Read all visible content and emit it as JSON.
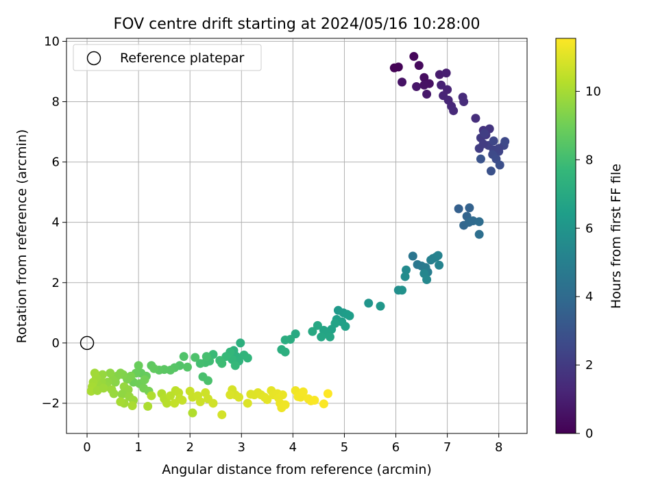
{
  "chart_data": {
    "type": "scatter",
    "title": "FOV centre drift starting at 2024/05/16 10:28:00",
    "xlabel": "Angular distance from reference (arcmin)",
    "ylabel": "Rotation from reference (arcmin)",
    "xlim": [
      -0.4,
      8.55
    ],
    "ylim": [
      -3.0,
      10.1
    ],
    "xticks": [
      0,
      1,
      2,
      3,
      4,
      5,
      6,
      7,
      8
    ],
    "yticks": [
      -2,
      0,
      2,
      4,
      6,
      8,
      10
    ],
    "grid": true,
    "legend": {
      "placement": "top-left",
      "entries": [
        "Reference platepar"
      ]
    },
    "reference_point": {
      "x": 0,
      "y": 0,
      "label": "Reference platepar"
    },
    "colorbar": {
      "label": "Hours from first FF file",
      "colormap": "viridis",
      "range": [
        0,
        11.55
      ],
      "ticks": [
        0,
        2,
        4,
        6,
        8,
        10
      ]
    },
    "series": [
      {
        "points": [
          [
            6.05,
            9.15
          ],
          [
            6.35,
            9.5
          ],
          [
            6.45,
            9.2
          ],
          [
            6.55,
            8.8
          ],
          [
            6.65,
            8.6
          ],
          [
            6.12,
            8.65
          ],
          [
            6.4,
            8.5
          ],
          [
            6.6,
            8.25
          ],
          [
            6.85,
            8.9
          ],
          [
            6.98,
            8.95
          ],
          [
            6.88,
            8.55
          ],
          [
            6.92,
            8.2
          ],
          [
            7.02,
            8.05
          ],
          [
            7.08,
            7.85
          ],
          [
            7.12,
            7.7
          ],
          [
            7.0,
            8.4
          ],
          [
            7.3,
            8.15
          ],
          [
            7.32,
            8.0
          ],
          [
            5.97,
            9.12
          ],
          [
            6.55,
            8.55
          ]
        ],
        "hours": [
          0.1,
          0.2,
          0.3,
          0.4,
          0.5,
          0.6,
          0.7,
          0.8,
          0.9,
          1.0,
          1.1,
          1.2,
          1.25,
          1.3,
          1.35,
          1.15,
          1.4,
          1.45,
          0.05,
          0.55
        ]
      },
      {
        "points": [
          [
            7.55,
            7.45
          ],
          [
            7.7,
            7.05
          ],
          [
            7.82,
            7.1
          ],
          [
            7.75,
            6.9
          ],
          [
            7.65,
            6.8
          ],
          [
            7.62,
            6.45
          ],
          [
            7.8,
            6.55
          ],
          [
            7.9,
            6.4
          ],
          [
            8.0,
            6.35
          ],
          [
            8.1,
            6.55
          ],
          [
            8.12,
            6.68
          ],
          [
            7.88,
            6.25
          ],
          [
            7.95,
            6.1
          ],
          [
            8.02,
            5.9
          ],
          [
            7.85,
            5.7
          ],
          [
            7.65,
            6.1
          ],
          [
            7.9,
            6.7
          ],
          [
            8.0,
            6.45
          ],
          [
            7.72,
            6.95
          ],
          [
            7.7,
            6.6
          ]
        ],
        "hours": [
          1.5,
          1.7,
          1.8,
          1.9,
          2.0,
          2.1,
          2.2,
          2.3,
          2.4,
          2.5,
          2.55,
          2.6,
          2.7,
          2.8,
          2.9,
          3.0,
          2.45,
          2.35,
          2.15,
          2.05
        ]
      },
      {
        "points": [
          [
            7.22,
            4.45
          ],
          [
            7.43,
            4.48
          ],
          [
            7.38,
            4.2
          ],
          [
            7.32,
            3.9
          ],
          [
            7.42,
            4.0
          ],
          [
            7.5,
            4.05
          ],
          [
            7.62,
            4.02
          ],
          [
            7.62,
            3.6
          ]
        ],
        "hours": [
          3.5,
          3.6,
          3.7,
          3.8,
          3.9,
          4.0,
          4.1,
          4.2
        ]
      },
      {
        "points": [
          [
            6.33,
            2.88
          ],
          [
            6.42,
            2.6
          ],
          [
            6.5,
            2.55
          ],
          [
            6.58,
            2.5
          ],
          [
            6.62,
            2.35
          ],
          [
            6.68,
            2.75
          ],
          [
            6.72,
            2.8
          ],
          [
            6.78,
            2.85
          ],
          [
            6.82,
            2.9
          ],
          [
            6.84,
            2.58
          ],
          [
            6.55,
            2.3
          ],
          [
            6.6,
            2.1
          ],
          [
            6.2,
            2.42
          ],
          [
            6.18,
            2.2
          ],
          [
            6.05,
            1.75
          ],
          [
            6.12,
            1.75
          ]
        ],
        "hours": [
          4.5,
          4.6,
          4.7,
          4.8,
          4.9,
          5.0,
          5.05,
          5.1,
          5.15,
          5.2,
          5.3,
          5.4,
          5.5,
          5.6,
          5.7,
          5.8
        ]
      },
      {
        "points": [
          [
            5.47,
            1.32
          ],
          [
            5.7,
            1.22
          ],
          [
            4.88,
            1.08
          ],
          [
            4.98,
            1.0
          ],
          [
            5.05,
            0.95
          ],
          [
            5.1,
            0.9
          ],
          [
            4.85,
            0.78
          ],
          [
            4.95,
            0.7
          ],
          [
            5.02,
            0.55
          ],
          [
            4.75,
            0.45
          ],
          [
            4.82,
            0.65
          ],
          [
            4.6,
            0.42
          ],
          [
            4.65,
            0.35
          ],
          [
            4.72,
            0.2
          ],
          [
            4.55,
            0.2
          ],
          [
            4.48,
            0.58
          ],
          [
            4.38,
            0.38
          ],
          [
            4.05,
            0.3
          ],
          [
            3.95,
            0.12
          ],
          [
            3.85,
            0.1
          ],
          [
            3.78,
            -0.22
          ],
          [
            3.85,
            -0.3
          ],
          [
            2.98,
            0.0
          ],
          [
            2.85,
            -0.25
          ],
          [
            2.9,
            -0.45
          ],
          [
            2.95,
            -0.6
          ],
          [
            3.05,
            -0.4
          ],
          [
            3.12,
            -0.5
          ],
          [
            2.82,
            -0.55
          ],
          [
            2.78,
            -0.3
          ],
          [
            2.88,
            -0.75
          ],
          [
            2.7,
            -0.45
          ]
        ],
        "hours": [
          6.0,
          6.1,
          6.2,
          6.3,
          6.35,
          6.4,
          6.45,
          6.5,
          6.55,
          6.6,
          6.65,
          6.7,
          6.75,
          6.8,
          6.85,
          6.9,
          6.95,
          7.0,
          7.1,
          7.15,
          7.2,
          7.25,
          7.3,
          7.35,
          7.4,
          7.45,
          7.5,
          7.55,
          7.6,
          7.65,
          7.7,
          7.75
        ]
      },
      {
        "points": [
          [
            2.45,
            -0.38
          ],
          [
            2.58,
            -0.58
          ],
          [
            2.62,
            -0.68
          ],
          [
            2.38,
            -0.6
          ],
          [
            2.3,
            -0.65
          ],
          [
            2.2,
            -0.68
          ],
          [
            2.32,
            -0.45
          ],
          [
            2.25,
            -1.12
          ],
          [
            2.35,
            -1.25
          ],
          [
            2.1,
            -0.48
          ],
          [
            1.88,
            -0.45
          ],
          [
            1.8,
            -0.75
          ],
          [
            1.95,
            -0.8
          ],
          [
            1.7,
            -0.82
          ],
          [
            1.62,
            -0.9
          ],
          [
            1.5,
            -0.88
          ],
          [
            1.4,
            -0.9
          ],
          [
            1.25,
            -0.75
          ],
          [
            1.3,
            -0.85
          ],
          [
            1.05,
            -1.0
          ],
          [
            1.15,
            -1.1
          ],
          [
            1.0,
            -0.75
          ],
          [
            0.95,
            -1.0
          ],
          [
            0.9,
            -1.3
          ],
          [
            1.02,
            -1.35
          ],
          [
            1.12,
            -1.22
          ],
          [
            1.1,
            -1.5
          ],
          [
            1.2,
            -1.6
          ],
          [
            0.85,
            -1.1
          ],
          [
            0.78,
            -1.2
          ],
          [
            0.7,
            -1.05
          ],
          [
            0.65,
            -1.0
          ],
          [
            0.58,
            -1.1
          ],
          [
            0.55,
            -1.3
          ],
          [
            0.5,
            -1.22
          ],
          [
            0.45,
            -1.0
          ],
          [
            0.4,
            -1.3
          ],
          [
            0.38,
            -1.45
          ],
          [
            0.3,
            -1.05
          ],
          [
            0.28,
            -1.28
          ],
          [
            0.22,
            -1.4
          ],
          [
            0.18,
            -1.15
          ],
          [
            0.15,
            -1.0
          ],
          [
            0.12,
            -1.3
          ],
          [
            0.1,
            -1.45
          ],
          [
            0.08,
            -1.6
          ],
          [
            0.2,
            -1.58
          ],
          [
            0.32,
            -1.5
          ],
          [
            0.48,
            -1.55
          ],
          [
            0.52,
            -1.68
          ],
          [
            0.72,
            -1.45
          ],
          [
            0.8,
            -1.55
          ]
        ],
        "hours": [
          7.8,
          7.85,
          7.9,
          7.95,
          8.0,
          8.05,
          8.1,
          8.15,
          8.2,
          8.25,
          8.3,
          8.35,
          8.4,
          8.45,
          8.5,
          8.55,
          8.6,
          8.65,
          8.7,
          8.75,
          8.8,
          8.85,
          8.9,
          8.95,
          9.0,
          9.05,
          9.1,
          9.15,
          9.2,
          9.25,
          9.3,
          9.35,
          9.4,
          9.45,
          9.5,
          9.55,
          9.6,
          9.65,
          9.7,
          9.75,
          9.8,
          9.85,
          9.9,
          9.95,
          10.0,
          10.05,
          9.9,
          9.85,
          9.8,
          9.75,
          9.7,
          9.65
        ]
      },
      {
        "points": [
          [
            0.68,
            -1.7
          ],
          [
            0.82,
            -1.78
          ],
          [
            0.9,
            -1.9
          ],
          [
            0.72,
            -2.0
          ],
          [
            0.65,
            -1.95
          ],
          [
            0.88,
            -2.08
          ],
          [
            1.18,
            -2.1
          ],
          [
            1.25,
            -1.75
          ],
          [
            1.45,
            -1.68
          ],
          [
            1.5,
            -1.85
          ],
          [
            1.55,
            -2.0
          ],
          [
            1.62,
            -1.75
          ],
          [
            1.72,
            -1.58
          ],
          [
            1.78,
            -1.65
          ],
          [
            1.8,
            -1.85
          ],
          [
            1.7,
            -2.0
          ],
          [
            1.85,
            -1.9
          ],
          [
            2.0,
            -1.6
          ],
          [
            2.05,
            -1.8
          ],
          [
            2.15,
            -1.75
          ],
          [
            2.2,
            -1.95
          ],
          [
            2.3,
            -1.65
          ],
          [
            2.35,
            -1.85
          ],
          [
            2.45,
            -2.0
          ],
          [
            2.05,
            -2.32
          ],
          [
            2.62,
            -2.38
          ],
          [
            2.82,
            -1.55
          ],
          [
            2.88,
            -1.72
          ],
          [
            2.95,
            -1.8
          ],
          [
            2.78,
            -1.72
          ],
          [
            3.12,
            -2.0
          ],
          [
            3.18,
            -1.7
          ],
          [
            3.25,
            -1.72
          ],
          [
            3.32,
            -1.65
          ],
          [
            3.38,
            -1.72
          ],
          [
            3.45,
            -1.8
          ],
          [
            3.5,
            -1.88
          ],
          [
            3.58,
            -1.58
          ],
          [
            3.62,
            -1.72
          ],
          [
            3.7,
            -1.68
          ],
          [
            3.72,
            -1.82
          ],
          [
            3.8,
            -1.72
          ],
          [
            3.75,
            -2.0
          ],
          [
            3.78,
            -2.15
          ],
          [
            3.85,
            -2.05
          ],
          [
            4.05,
            -1.58
          ],
          [
            4.1,
            -1.78
          ],
          [
            4.15,
            -1.8
          ],
          [
            4.2,
            -1.62
          ],
          [
            4.3,
            -1.85
          ],
          [
            4.35,
            -1.92
          ],
          [
            4.42,
            -1.9
          ],
          [
            4.6,
            -2.02
          ],
          [
            4.68,
            -1.68
          ]
        ],
        "hours": [
          9.6,
          9.7,
          9.8,
          9.9,
          10.0,
          10.05,
          10.1,
          10.15,
          10.2,
          10.25,
          10.3,
          10.35,
          10.4,
          10.45,
          10.5,
          10.52,
          10.55,
          10.6,
          10.62,
          10.65,
          10.68,
          10.7,
          10.72,
          10.75,
          10.2,
          10.8,
          10.85,
          10.88,
          10.9,
          10.92,
          10.95,
          10.98,
          11.0,
          11.02,
          11.05,
          11.08,
          11.1,
          11.12,
          11.15,
          11.18,
          11.2,
          11.22,
          11.25,
          11.28,
          11.3,
          11.32,
          11.35,
          11.38,
          11.4,
          11.42,
          11.45,
          11.48,
          11.5,
          11.55
        ]
      }
    ]
  }
}
